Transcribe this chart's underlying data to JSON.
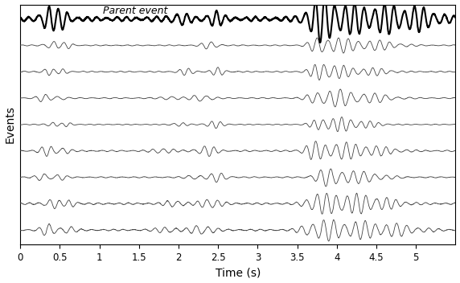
{
  "title": "",
  "xlabel": "Time (s)",
  "ylabel": "Events",
  "xlim": [
    0,
    5.5
  ],
  "xticks": [
    0,
    0.5,
    1,
    1.5,
    2,
    2.5,
    3,
    3.5,
    4,
    4.5,
    5
  ],
  "num_children": 8,
  "duration": 5.5,
  "sample_rate": 400,
  "parent_linewidth": 1.5,
  "child_linewidth": 0.6,
  "parent_color": "#000000",
  "child_color": "#444444",
  "annotation_text": "Parent event",
  "annotation_style": "italic",
  "annotation_fontsize": 9,
  "background_color": "#ffffff",
  "border_color": "#000000",
  "seed": 42
}
